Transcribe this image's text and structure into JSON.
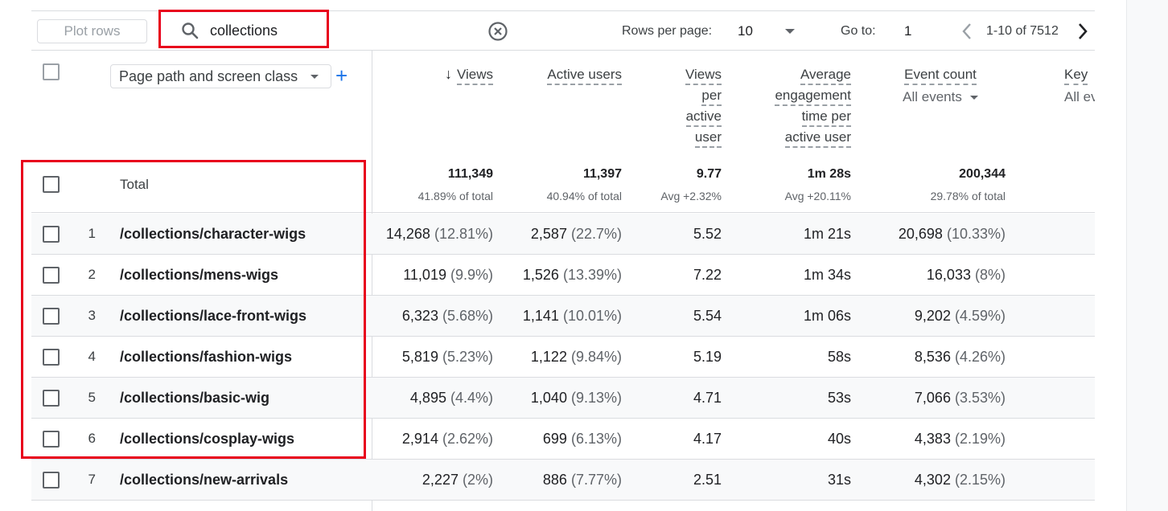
{
  "toolbar": {
    "plot_rows_label": "Plot rows",
    "search_value": "collections",
    "rows_per_page_label": "Rows per page:",
    "rows_per_page_value": "10",
    "goto_label": "Go to:",
    "goto_value": "1",
    "range_text": "1-10 of 7512"
  },
  "dimension": {
    "label": "Page path and screen class"
  },
  "columns": {
    "views": "Views",
    "active_users": "Active users",
    "views_per_user": [
      "Views",
      "per",
      "active",
      "user"
    ],
    "avg_engagement": [
      "Average",
      "engagement",
      "time per",
      "active user"
    ],
    "event_count": "Event count",
    "event_count_filter": "All events",
    "key_events": "Key",
    "key_events_filter": "All ev"
  },
  "total": {
    "label": "Total",
    "views": "111,349",
    "views_sub": "41.89% of total",
    "active_users": "11,397",
    "active_users_sub": "40.94% of total",
    "views_per_user": "9.77",
    "views_per_user_sub": "Avg +2.32%",
    "avg_engagement": "1m 28s",
    "avg_engagement_sub": "Avg +20.11%",
    "event_count": "200,344",
    "event_count_sub": "29.78% of total"
  },
  "rows": [
    {
      "idx": "1",
      "path": "/collections/character-wigs",
      "views": "14,268",
      "views_pct": "(12.81%)",
      "users": "2,587",
      "users_pct": "(22.7%)",
      "vpu": "5.52",
      "eng": "1m 21s",
      "events": "20,698",
      "events_pct": "(10.33%)"
    },
    {
      "idx": "2",
      "path": "/collections/mens-wigs",
      "views": "11,019",
      "views_pct": "(9.9%)",
      "users": "1,526",
      "users_pct": "(13.39%)",
      "vpu": "7.22",
      "eng": "1m 34s",
      "events": "16,033",
      "events_pct": "(8%)"
    },
    {
      "idx": "3",
      "path": "/collections/lace-front-wigs",
      "views": "6,323",
      "views_pct": "(5.68%)",
      "users": "1,141",
      "users_pct": "(10.01%)",
      "vpu": "5.54",
      "eng": "1m 06s",
      "events": "9,202",
      "events_pct": "(4.59%)"
    },
    {
      "idx": "4",
      "path": "/collections/fashion-wigs",
      "views": "5,819",
      "views_pct": "(5.23%)",
      "users": "1,122",
      "users_pct": "(9.84%)",
      "vpu": "5.19",
      "eng": "58s",
      "events": "8,536",
      "events_pct": "(4.26%)"
    },
    {
      "idx": "5",
      "path": "/collections/basic-wig",
      "views": "4,895",
      "views_pct": "(4.4%)",
      "users": "1,040",
      "users_pct": "(9.13%)",
      "vpu": "4.71",
      "eng": "53s",
      "events": "7,066",
      "events_pct": "(3.53%)"
    },
    {
      "idx": "6",
      "path": "/collections/cosplay-wigs",
      "views": "2,914",
      "views_pct": "(2.62%)",
      "users": "699",
      "users_pct": "(6.13%)",
      "vpu": "4.17",
      "eng": "40s",
      "events": "4,383",
      "events_pct": "(2.19%)"
    },
    {
      "idx": "7",
      "path": "/collections/new-arrivals",
      "views": "2,227",
      "views_pct": "(2%)",
      "users": "886",
      "users_pct": "(7.77%)",
      "vpu": "2.51",
      "eng": "31s",
      "events": "4,302",
      "events_pct": "(2.15%)"
    }
  ],
  "icons": {
    "search": "search-icon",
    "clear": "clear-circle-icon",
    "prev": "chevron-left-icon",
    "next": "chevron-right-icon",
    "sort": "arrow-down-icon",
    "add": "plus-icon"
  },
  "colors": {
    "annotation_red": "#e8001c",
    "accent_blue": "#1a73e8"
  }
}
